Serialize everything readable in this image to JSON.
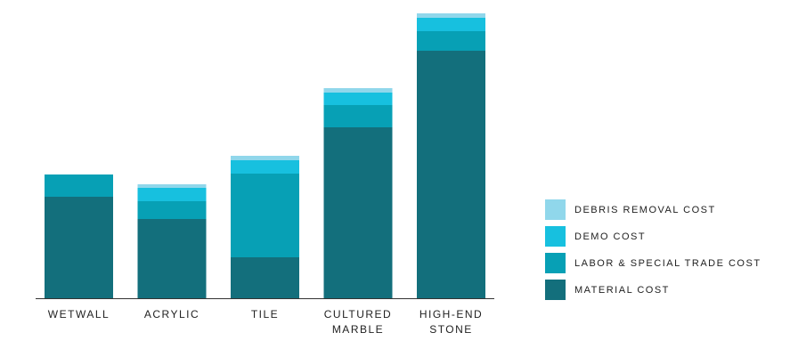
{
  "chart_data": {
    "type": "stacked-bar",
    "categories": [
      "WETWALL",
      "ACRYLIC",
      "TILE",
      "CULTURED\nMARBLE",
      "HIGH-END\nSTONE"
    ],
    "series": [
      {
        "name": "MATERIAL COST",
        "color": "#136f7c",
        "values": [
          114,
          89,
          46,
          192,
          278
        ]
      },
      {
        "name": "LABOR & SPECIAL TRADE COST",
        "color": "#07a0b5",
        "values": [
          25,
          20,
          94,
          25,
          22
        ]
      },
      {
        "name": "DEMO COST",
        "color": "#17c0df",
        "values": [
          0,
          15,
          15,
          14,
          15
        ]
      },
      {
        "name": "DEBRIS REMOVAL COST",
        "color": "#90d7eb",
        "values": [
          0,
          4,
          5,
          5,
          5
        ]
      }
    ],
    "ylim": [
      0,
      320
    ],
    "legend": "right"
  }
}
